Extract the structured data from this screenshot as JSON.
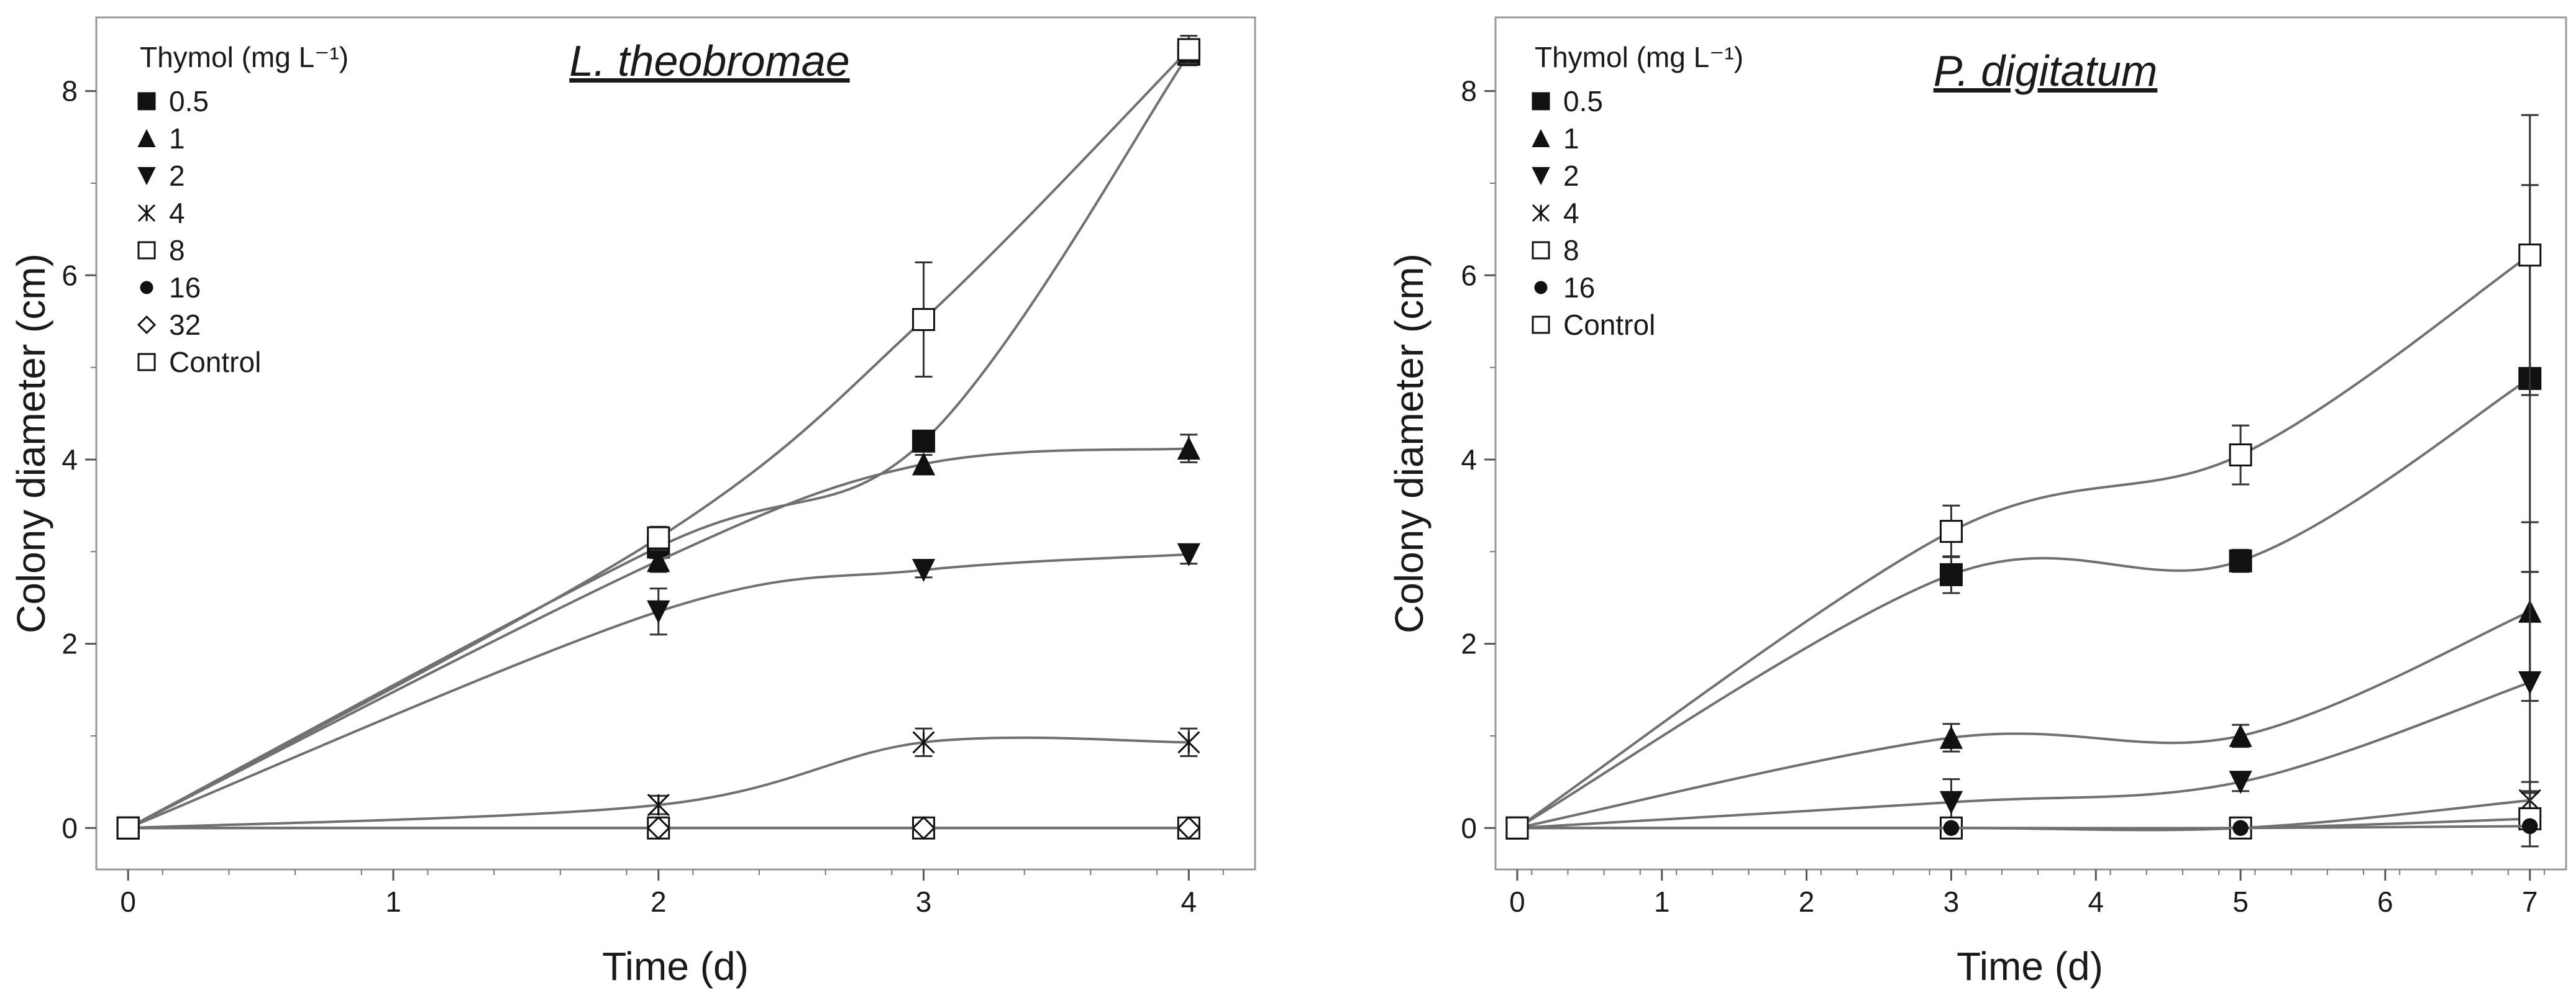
{
  "chart_data": [
    {
      "type": "line",
      "title": "L. theobromae",
      "xlabel": "Time (d)",
      "ylabel": "Colony diameter (cm)",
      "xlim": [
        -0.12,
        4.25
      ],
      "ylim": [
        -0.45,
        8.8
      ],
      "xticks": [
        0,
        1,
        2,
        3,
        4
      ],
      "yticks": [
        0,
        2,
        4,
        6,
        8
      ],
      "grid": false,
      "legend_title": "Thymol (mg L⁻¹)",
      "legend_position": "top-left",
      "series": [
        {
          "name": "0.5",
          "marker": "square-filled",
          "x": [
            0,
            2,
            3,
            4
          ],
          "y": [
            0,
            3.05,
            4.2,
            8.4
          ],
          "err": [
            0.05,
            0.12,
            0.1,
            0.12
          ]
        },
        {
          "name": "1",
          "marker": "triangle-up-filled",
          "x": [
            0,
            2,
            3,
            4
          ],
          "y": [
            0,
            2.9,
            3.95,
            4.12
          ],
          "err": [
            0.05,
            0.12,
            0.1,
            0.15
          ]
        },
        {
          "name": "2",
          "marker": "triangle-down-filled",
          "x": [
            0,
            2,
            3,
            4
          ],
          "y": [
            0,
            2.35,
            2.8,
            2.97
          ],
          "err": [
            0.05,
            0.25,
            0.08,
            0.1
          ]
        },
        {
          "name": "4",
          "marker": "asterisk",
          "x": [
            0,
            2,
            3,
            4
          ],
          "y": [
            0,
            0.25,
            0.93,
            0.93
          ],
          "err": [
            0.05,
            0.1,
            0.15,
            0.15
          ]
        },
        {
          "name": "8",
          "marker": "square-open",
          "x": [
            0,
            2,
            3,
            4
          ],
          "y": [
            0,
            0,
            0,
            0
          ],
          "err": [
            0.05,
            0.05,
            0.05,
            0.05
          ]
        },
        {
          "name": "16",
          "marker": "circle-filled",
          "x": [
            0,
            2,
            3,
            4
          ],
          "y": [
            0,
            0,
            0,
            0
          ],
          "err": [
            0.05,
            0.05,
            0.05,
            0.05
          ]
        },
        {
          "name": "32",
          "marker": "diamond-open",
          "x": [
            0,
            2,
            3,
            4
          ],
          "y": [
            0,
            0,
            0,
            0
          ],
          "err": [
            0.05,
            0.05,
            0.05,
            0.05
          ]
        },
        {
          "name": "Control",
          "marker": "square-open",
          "x": [
            0,
            2,
            3,
            4
          ],
          "y": [
            0,
            3.15,
            5.52,
            8.45
          ],
          "err": [
            0.05,
            0.12,
            0.62,
            0.15
          ]
        }
      ]
    },
    {
      "type": "line",
      "title": "P. digitatum",
      "xlabel": "Time (d)",
      "ylabel": "Colony diameter (cm)",
      "xlim": [
        -0.15,
        7.25
      ],
      "ylim": [
        -0.45,
        8.8
      ],
      "xticks": [
        0,
        1,
        2,
        3,
        4,
        5,
        6,
        7
      ],
      "yticks": [
        0,
        2,
        4,
        6,
        8
      ],
      "grid": false,
      "legend_title": "Thymol (mg L⁻¹)",
      "legend_position": "top-left",
      "series": [
        {
          "name": "0.5",
          "marker": "square-filled",
          "x": [
            0,
            3,
            5,
            7
          ],
          "y": [
            0,
            2.75,
            2.9,
            4.88
          ],
          "err": [
            0.05,
            0.2,
            0.12,
            2.1
          ]
        },
        {
          "name": "1",
          "marker": "triangle-up-filled",
          "x": [
            0,
            3,
            5,
            7
          ],
          "y": [
            0,
            0.98,
            1.0,
            2.35
          ],
          "err": [
            0.05,
            0.15,
            0.12,
            0.97
          ]
        },
        {
          "name": "2",
          "marker": "triangle-down-filled",
          "x": [
            0,
            3,
            5,
            7
          ],
          "y": [
            0,
            0.28,
            0.5,
            1.58
          ],
          "err": [
            0.05,
            0.25,
            0.1,
            1.2
          ]
        },
        {
          "name": "4",
          "marker": "asterisk",
          "x": [
            0,
            3,
            5,
            7
          ],
          "y": [
            0,
            0,
            0,
            0.3
          ],
          "err": [
            0.05,
            0.05,
            0.05,
            0.2
          ]
        },
        {
          "name": "8",
          "marker": "square-open",
          "x": [
            0,
            3,
            5,
            7
          ],
          "y": [
            0,
            0,
            0,
            0.1
          ],
          "err": [
            0.05,
            0.05,
            0.05,
            0.3
          ]
        },
        {
          "name": "16",
          "marker": "circle-filled",
          "x": [
            0,
            3,
            5,
            7
          ],
          "y": [
            0,
            0,
            0,
            0.02
          ],
          "err": [
            0.05,
            0.05,
            0.05,
            0.05
          ]
        },
        {
          "name": "Control",
          "marker": "square-open",
          "x": [
            0,
            3,
            5,
            7
          ],
          "y": [
            0,
            3.22,
            4.05,
            6.22
          ],
          "err": [
            0.05,
            0.28,
            0.32,
            1.52
          ]
        }
      ]
    }
  ]
}
